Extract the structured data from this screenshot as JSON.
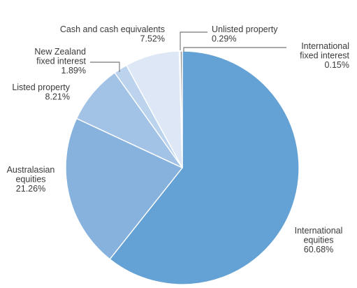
{
  "chart_data": {
    "type": "pie",
    "slices": [
      {
        "label": "International equities",
        "lines": [
          "International",
          "equities"
        ],
        "value_label": "60.68%",
        "value": 60.68,
        "color": "#64a1d4"
      },
      {
        "label": "Australasian equities",
        "lines": [
          "Australasian",
          "equities"
        ],
        "value_label": "21.26%",
        "value": 21.26,
        "color": "#86b2dd"
      },
      {
        "label": "Listed property",
        "lines": [
          "Listed property"
        ],
        "value_label": "8.21%",
        "value": 8.21,
        "color": "#a3c3e6"
      },
      {
        "label": "New Zealand fixed interest",
        "lines": [
          "New Zealand",
          "fixed interest"
        ],
        "value_label": "1.89%",
        "value": 1.89,
        "color": "#bcd3ee"
      },
      {
        "label": "Cash and cash equivalents",
        "lines": [
          "Cash and cash equivalents"
        ],
        "value_label": "7.52%",
        "value": 7.52,
        "color": "#dde7f5"
      },
      {
        "label": "International fixed interest",
        "lines": [
          "International",
          "fixed interest"
        ],
        "value_label": "0.15%",
        "value": 0.15,
        "color": "#f0f4fa"
      },
      {
        "label": "Unlisted property",
        "lines": [
          "Unlisted property"
        ],
        "value_label": "0.29%",
        "value": 0.29,
        "color": "#9a9a9a"
      }
    ],
    "slice_border_color": "#ffffff",
    "leader_line_color": "#555555",
    "text_color": "#3a3a3a"
  }
}
